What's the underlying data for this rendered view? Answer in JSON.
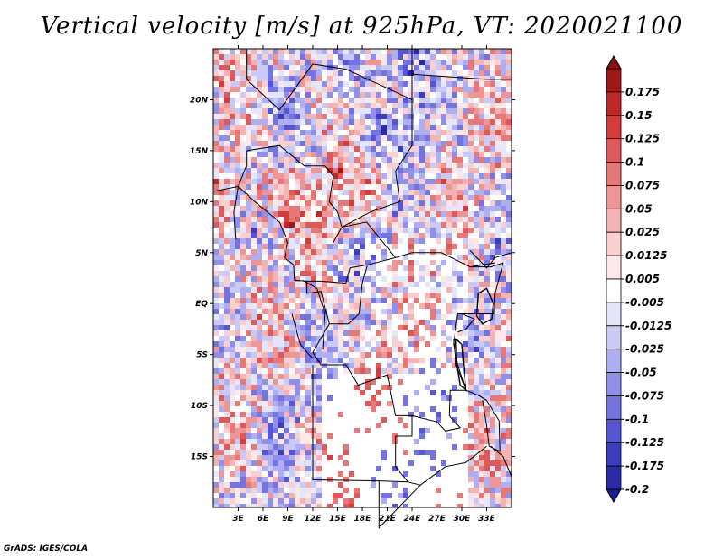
{
  "title": "Vertical velocity [m/s] at 925hPa, VT: 2020021100",
  "credit": "GrADS: IGES/COLA",
  "map": {
    "lon_range": [
      0,
      36
    ],
    "lat_range": [
      -20,
      25
    ],
    "lat_ticks": [
      {
        "value": 20,
        "label": "20N"
      },
      {
        "value": 15,
        "label": "15N"
      },
      {
        "value": 10,
        "label": "10N"
      },
      {
        "value": 5,
        "label": "5N"
      },
      {
        "value": 0,
        "label": "EQ"
      },
      {
        "value": -5,
        "label": "5S"
      },
      {
        "value": -10,
        "label": "10S"
      },
      {
        "value": -15,
        "label": "15S"
      }
    ],
    "lon_ticks": [
      {
        "value": 3,
        "label": "3E"
      },
      {
        "value": 6,
        "label": "6E"
      },
      {
        "value": 9,
        "label": "9E"
      },
      {
        "value": 12,
        "label": "12E"
      },
      {
        "value": 15,
        "label": "15E"
      },
      {
        "value": 18,
        "label": "18E"
      },
      {
        "value": 21,
        "label": "21E"
      },
      {
        "value": 24,
        "label": "24E"
      },
      {
        "value": 27,
        "label": "27E"
      },
      {
        "value": 30,
        "label": "30E"
      },
      {
        "value": 33,
        "label": "33E"
      }
    ]
  },
  "colorbar": {
    "items": [
      {
        "label": "0.175",
        "color": "#a01818"
      },
      {
        "label": "0.15",
        "color": "#be2828"
      },
      {
        "label": "0.125",
        "color": "#d23c3c"
      },
      {
        "label": "0.1",
        "color": "#de5a5a"
      },
      {
        "label": "0.075",
        "color": "#e67878"
      },
      {
        "label": "0.05",
        "color": "#ee9696"
      },
      {
        "label": "0.025",
        "color": "#f4b4b4"
      },
      {
        "label": "0.0125",
        "color": "#f8d0d0"
      },
      {
        "label": "0.005",
        "color": "#fce8e8"
      },
      {
        "label": "-0.005",
        "color": "#ffffff"
      },
      {
        "label": "-0.0125",
        "color": "#e6e6fa"
      },
      {
        "label": "-0.025",
        "color": "#cacaf6"
      },
      {
        "label": "-0.05",
        "color": "#aeaef2"
      },
      {
        "label": "-0.075",
        "color": "#9090ea"
      },
      {
        "label": "-0.1",
        "color": "#7474e0"
      },
      {
        "label": "-0.125",
        "color": "#5656d4"
      },
      {
        "label": "-0.175",
        "color": "#3c3cc0"
      },
      {
        "label": "-0.2",
        "color": "#2a2aa6"
      }
    ],
    "over_color": "#8c1010",
    "under_color": "#1c1c94"
  }
}
